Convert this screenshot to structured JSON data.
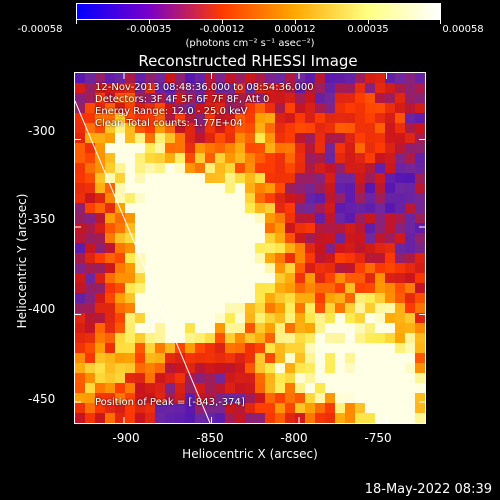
{
  "colorbar": {
    "tick_labels": [
      "-0.00058",
      "-0.00035",
      "-0.00012",
      "0.00012",
      "0.00035",
      "0.00058"
    ],
    "units": "(photons cm⁻² s⁻¹ asec⁻²)",
    "colors": [
      "#0000ff",
      "#7a00c8",
      "#ff3a00",
      "#ffa800",
      "#ffff80",
      "#ffffff"
    ]
  },
  "plot": {
    "title": "Reconstructed RHESSI Image",
    "info_lines": [
      "12-Nov-2013 08:48:36.000 to 08:54:36.000",
      "Detectors: 3F 4F 5F 6F 7F 8F, Att 0",
      "Energy Range: 12.0 - 25.0 keV",
      "Clean    Total counts: 1.77E+04"
    ],
    "peak_label": "Position of Peak = [-843,-374]",
    "xlabel": "Heliocentric X (arcsec)",
    "ylabel": "Heliocentric Y (arcsec)",
    "x_ticks": [
      "-900",
      "-850",
      "-800",
      "-750"
    ],
    "y_ticks": [
      "-300",
      "-350",
      "-400",
      "-450"
    ],
    "x_range": [
      -928,
      -728
    ],
    "y_range": [
      -262,
      -462
    ],
    "peak": [
      -843,
      -374
    ]
  },
  "timestamp": "18-May-2022 08:39"
}
